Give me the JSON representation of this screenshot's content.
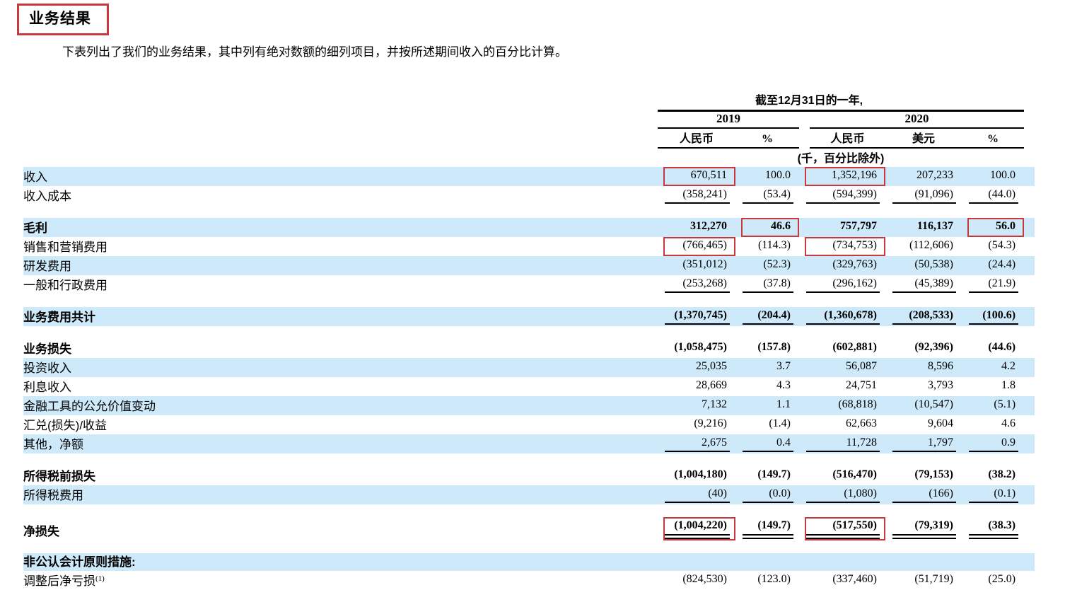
{
  "page": {
    "title": "业务结果",
    "intro": "下表列出了我们的业务结果，其中列有绝对数额的细列项目，并按所述期间收入的百分比计算。"
  },
  "table": {
    "period_header": "截至12月31日的一年,",
    "year_groups": [
      {
        "label": "2019"
      },
      {
        "label": "2020"
      }
    ],
    "columns": [
      "人民币",
      "%",
      "人民币",
      "美元",
      "%"
    ],
    "unit_note": "(千，百分比除外)",
    "rows": [
      {
        "label": "收入",
        "highlight": true,
        "values": [
          "670,511",
          "100.0",
          "1,352,196",
          "207,233",
          "100.0"
        ],
        "boxed": [
          0,
          2
        ]
      },
      {
        "label": "收入成本",
        "values": [
          "(358,241)",
          "(53.4)",
          "(594,399)",
          "(91,096)",
          "(44.0)"
        ],
        "underline": "single"
      },
      {
        "type": "spacer"
      },
      {
        "label": "毛利",
        "bold": true,
        "highlight": true,
        "values": [
          "312,270",
          "46.6",
          "757,797",
          "116,137",
          "56.0"
        ],
        "boxed": [
          1,
          4
        ]
      },
      {
        "label": "销售和营销费用",
        "values": [
          "(766,465)",
          "(114.3)",
          "(734,753)",
          "(112,606)",
          "(54.3)"
        ],
        "boxed": [
          0,
          2
        ]
      },
      {
        "label": "研发费用",
        "highlight": true,
        "values": [
          "(351,012)",
          "(52.3)",
          "(329,763)",
          "(50,538)",
          "(24.4)"
        ]
      },
      {
        "label": "一般和行政费用",
        "values": [
          "(253,268)",
          "(37.8)",
          "(296,162)",
          "(45,389)",
          "(21.9)"
        ],
        "underline": "single"
      },
      {
        "type": "spacer"
      },
      {
        "label": "业务费用共计",
        "bold": true,
        "highlight": true,
        "values": [
          "(1,370,745)",
          "(204.4)",
          "(1,360,678)",
          "(208,533)",
          "(100.6)"
        ],
        "underline": "single"
      },
      {
        "type": "spacer"
      },
      {
        "label": "业务损失",
        "bold": true,
        "values": [
          "(1,058,475)",
          "(157.8)",
          "(602,881)",
          "(92,396)",
          "(44.6)"
        ]
      },
      {
        "label": "投资收入",
        "highlight": true,
        "values": [
          "25,035",
          "3.7",
          "56,087",
          "8,596",
          "4.2"
        ]
      },
      {
        "label": "利息收入",
        "values": [
          "28,669",
          "4.3",
          "24,751",
          "3,793",
          "1.8"
        ]
      },
      {
        "label": "金融工具的公允价值变动",
        "highlight": true,
        "values": [
          "7,132",
          "1.1",
          "(68,818)",
          "(10,547)",
          "(5.1)"
        ]
      },
      {
        "label": "汇兑(损失)/收益",
        "values": [
          "(9,216)",
          "(1.4)",
          "62,663",
          "9,604",
          "4.6"
        ]
      },
      {
        "label": "其他，净额",
        "highlight": true,
        "values": [
          "2,675",
          "0.4",
          "11,728",
          "1,797",
          "0.9"
        ],
        "underline": "single"
      },
      {
        "type": "spacer"
      },
      {
        "label": "所得税前损失",
        "bold": true,
        "values": [
          "(1,004,180)",
          "(149.7)",
          "(516,470)",
          "(79,153)",
          "(38.2)"
        ]
      },
      {
        "label": "所得税费用",
        "highlight": true,
        "values": [
          "(40)",
          "(0.0)",
          "(1,080)",
          "(166)",
          "(0.1)"
        ],
        "underline": "single"
      },
      {
        "type": "spacer"
      },
      {
        "label": "净损失",
        "bold": true,
        "tall": true,
        "values": [
          "(1,004,220)",
          "(149.7)",
          "(517,550)",
          "(79,319)",
          "(38.3)"
        ],
        "underline": "double",
        "boxed": [
          0,
          2
        ]
      },
      {
        "type": "spacer"
      },
      {
        "label": "非公认会计原则措施:",
        "bold": true,
        "highlight": true,
        "values": [
          "",
          "",
          "",
          "",
          ""
        ]
      },
      {
        "label": "调整后净亏损",
        "label_sup": "(1)",
        "values": [
          "(824,530)",
          "(123.0)",
          "(337,460)",
          "(51,719)",
          "(25.0)"
        ]
      }
    ]
  },
  "colors": {
    "highlight_blue": "#cde9fa",
    "annotation_red": "#c8393e"
  }
}
